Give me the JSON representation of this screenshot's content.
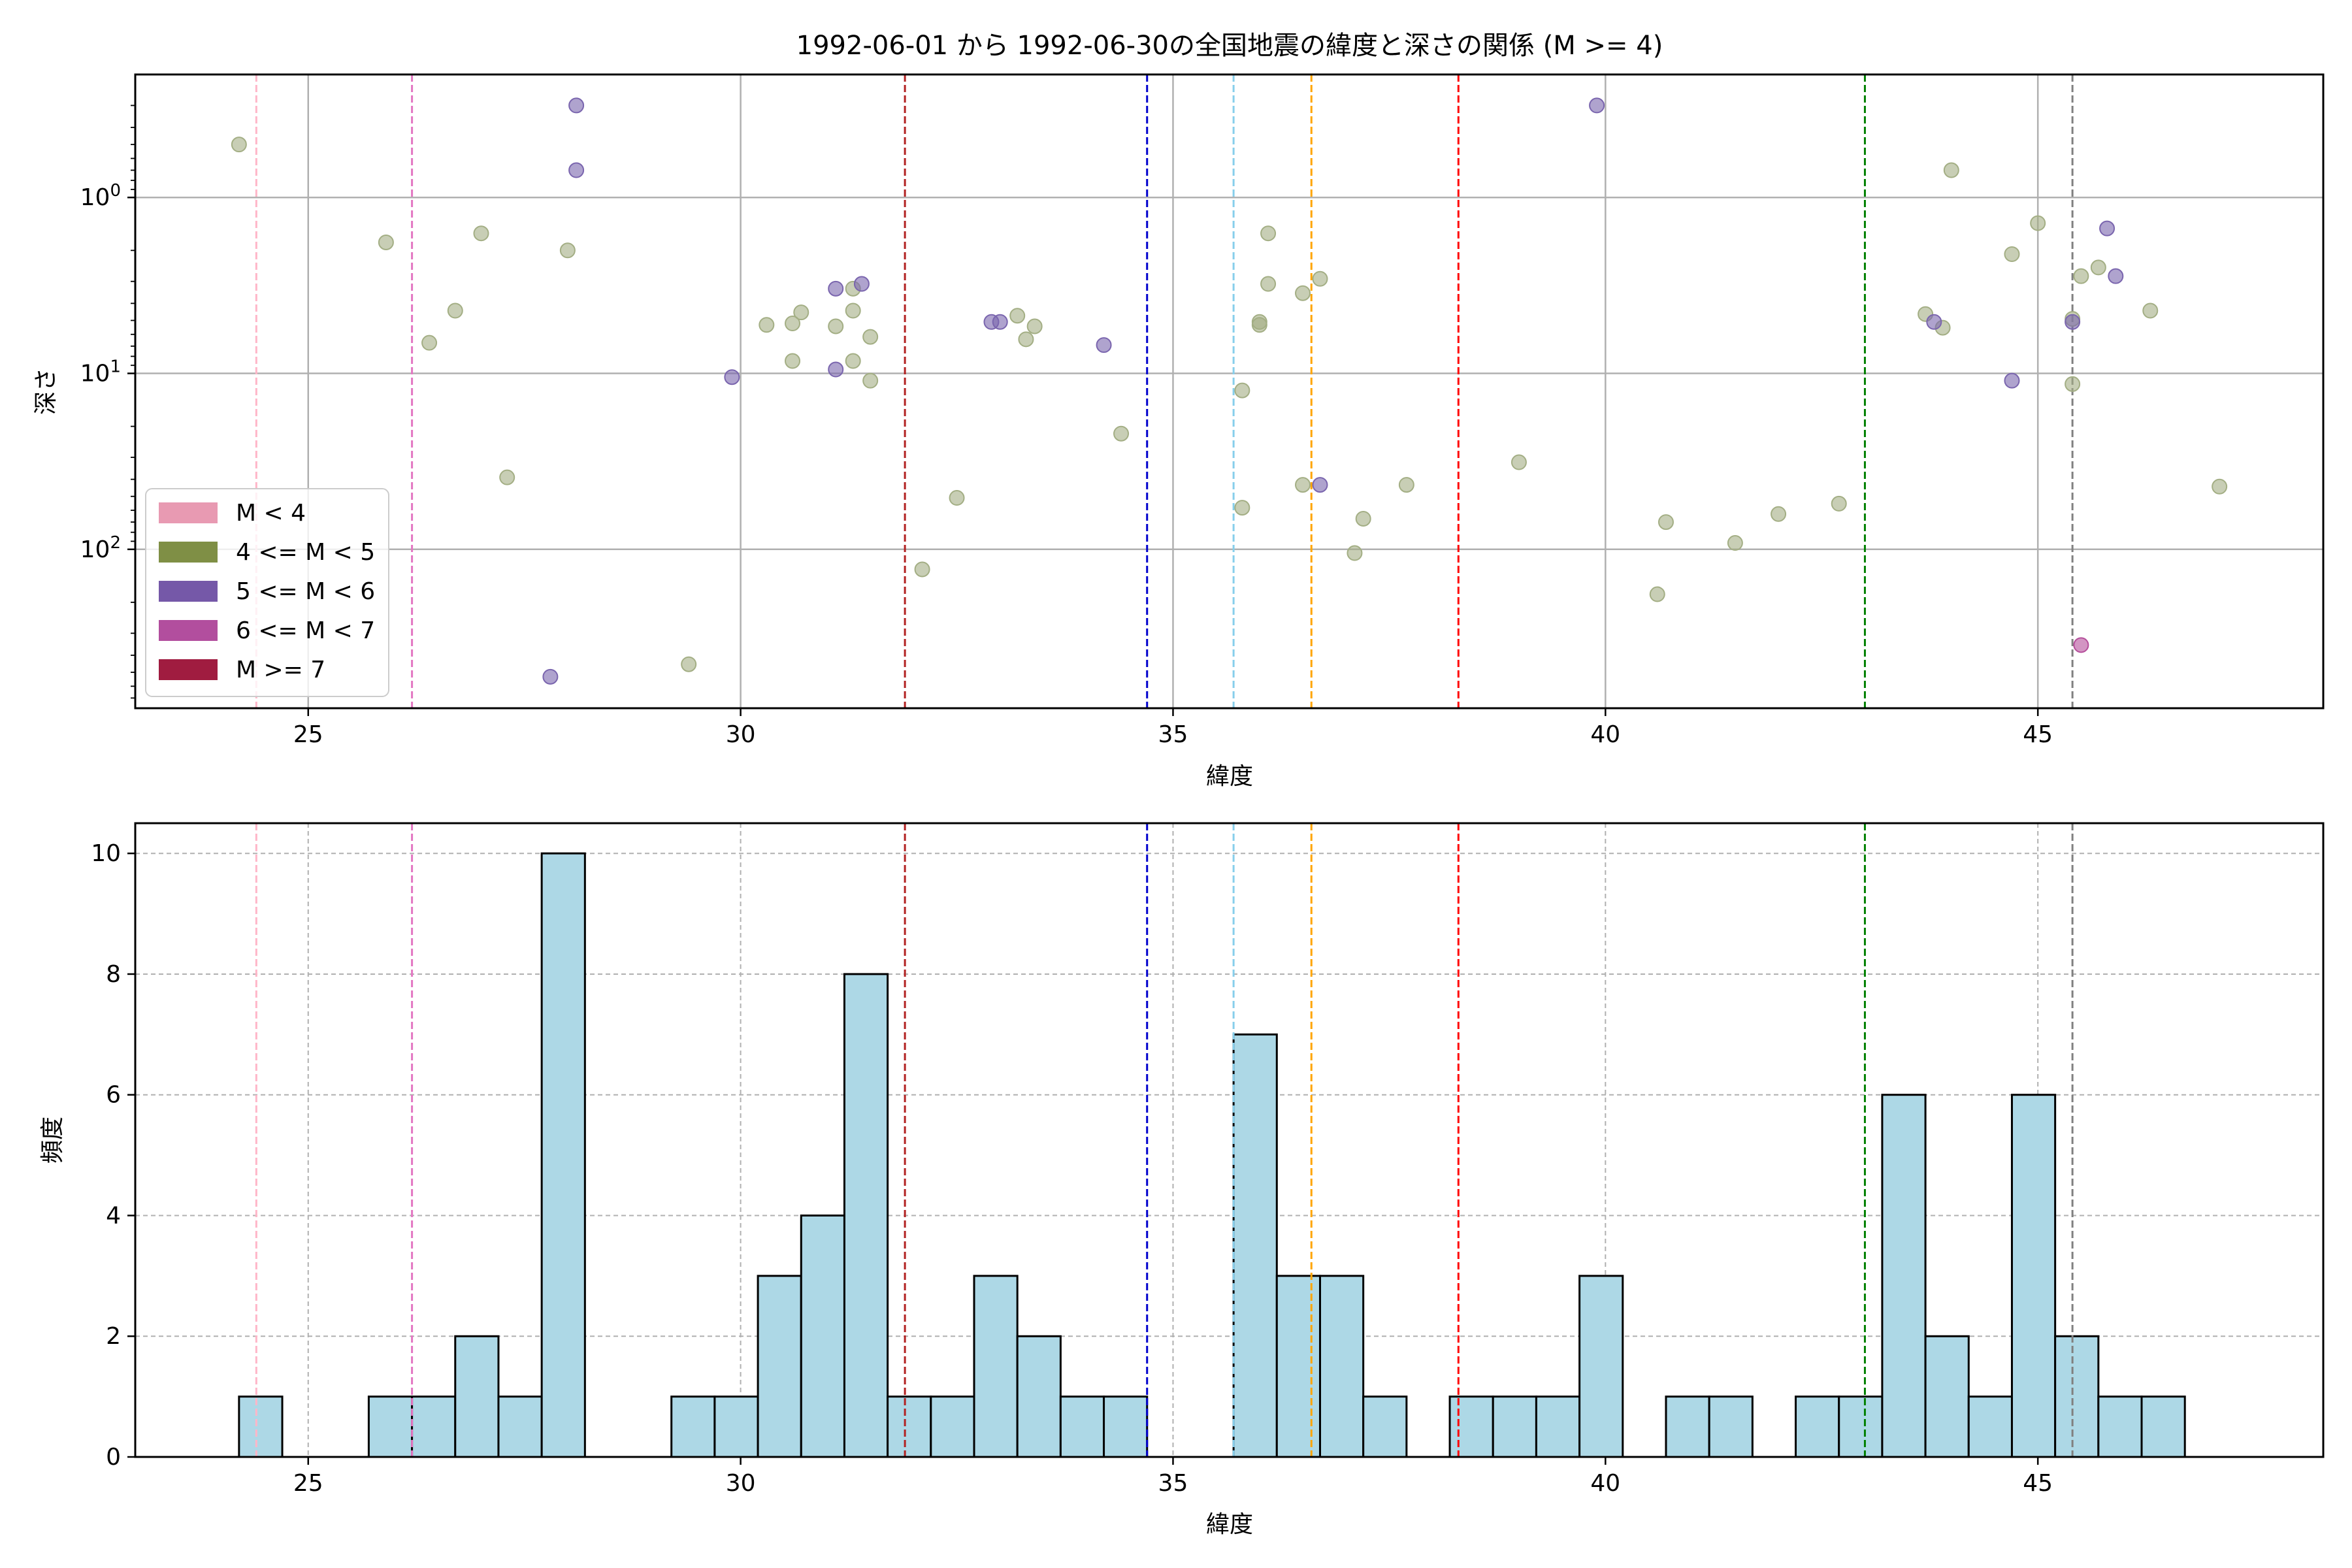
{
  "chart_data": [
    {
      "type": "scatter",
      "title": "1992-06-01 から 1992-06-30の全国地震の緯度と深さの関係 (M >= 4)",
      "xlabel": "緯度",
      "ylabel": "深さ",
      "xlim": [
        23.0,
        48.3
      ],
      "ylim": [
        800,
        0.2
      ],
      "yscale": "log",
      "yaxis_inverted": true,
      "xticks": [
        25,
        30,
        35,
        40,
        45
      ],
      "yticks": [
        {
          "value": 1,
          "label": "10^0"
        },
        {
          "value": 10,
          "label": "10^1"
        },
        {
          "value": 100,
          "label": "10^2"
        }
      ],
      "grid": true,
      "legend_position": "lower-left",
      "legend": [
        {
          "label": "M < 4",
          "color": "#e89ab2"
        },
        {
          "label": "4 <= M < 5",
          "color": "#7f8f45"
        },
        {
          "label": "5 <= M < 6",
          "color": "#7558a8"
        },
        {
          "label": "6 <= M < 7",
          "color": "#b24e9e"
        },
        {
          "label": "M >= 7",
          "color": "#a01c40"
        }
      ],
      "vlines": [
        {
          "x": 24.4,
          "color": "#ffb6c8"
        },
        {
          "x": 26.2,
          "color": "#e377c2"
        },
        {
          "x": 31.9,
          "color": "#b22222"
        },
        {
          "x": 34.7,
          "color": "#0000cd"
        },
        {
          "x": 35.7,
          "color": "#87ceeb"
        },
        {
          "x": 36.6,
          "color": "#ffa500"
        },
        {
          "x": 38.3,
          "color": "#ff0000"
        },
        {
          "x": 43.0,
          "color": "#008000"
        },
        {
          "x": 45.4,
          "color": "#808080"
        }
      ],
      "series": [
        {
          "color": "#a3ae84",
          "points": [
            [
              24.2,
              0.5
            ],
            [
              25.9,
              1.8
            ],
            [
              26.4,
              6.7
            ],
            [
              26.7,
              4.4
            ],
            [
              27.0,
              1.6
            ],
            [
              27.3,
              39
            ],
            [
              28.0,
              2.0
            ],
            [
              29.4,
              450
            ],
            [
              30.3,
              5.3
            ],
            [
              30.6,
              5.2
            ],
            [
              30.6,
              8.5
            ],
            [
              30.7,
              4.5
            ],
            [
              31.1,
              5.4
            ],
            [
              31.3,
              3.3
            ],
            [
              31.3,
              8.5
            ],
            [
              31.3,
              4.4
            ],
            [
              31.5,
              6.2
            ],
            [
              31.5,
              11
            ],
            [
              32.1,
              130
            ],
            [
              32.5,
              51
            ],
            [
              33.2,
              4.7
            ],
            [
              33.3,
              6.4
            ],
            [
              33.4,
              5.4
            ],
            [
              34.4,
              22
            ],
            [
              35.8,
              12.5
            ],
            [
              35.8,
              58
            ],
            [
              36.0,
              5.1
            ],
            [
              36.0,
              5.3
            ],
            [
              36.1,
              1.6
            ],
            [
              36.1,
              3.1
            ],
            [
              36.5,
              3.5
            ],
            [
              36.5,
              43
            ],
            [
              36.7,
              2.9
            ],
            [
              37.1,
              105
            ],
            [
              37.2,
              67
            ],
            [
              37.7,
              43
            ],
            [
              39.0,
              32
            ],
            [
              40.6,
              180
            ],
            [
              40.7,
              70
            ],
            [
              41.5,
              92
            ],
            [
              42.0,
              63
            ],
            [
              42.7,
              55
            ],
            [
              43.7,
              4.6
            ],
            [
              43.9,
              5.5
            ],
            [
              44.0,
              0.7
            ],
            [
              44.7,
              2.1
            ],
            [
              45.0,
              1.4
            ],
            [
              45.4,
              4.9
            ],
            [
              45.4,
              11.5
            ],
            [
              45.5,
              2.8
            ],
            [
              45.7,
              2.5
            ],
            [
              46.3,
              4.4
            ],
            [
              47.1,
              44
            ]
          ]
        },
        {
          "color": "#7a65ae",
          "points": [
            [
              27.8,
              530
            ],
            [
              28.1,
              0.3
            ],
            [
              28.1,
              0.7
            ],
            [
              29.9,
              10.5
            ],
            [
              31.1,
              3.3
            ],
            [
              31.1,
              9.5
            ],
            [
              31.4,
              3.1
            ],
            [
              32.9,
              5.1
            ],
            [
              33.0,
              5.1
            ],
            [
              34.2,
              6.9
            ],
            [
              36.7,
              43
            ],
            [
              39.9,
              0.3
            ],
            [
              43.8,
              5.1
            ],
            [
              44.7,
              11
            ],
            [
              45.4,
              5.1
            ],
            [
              45.8,
              1.5
            ],
            [
              45.9,
              2.8
            ]
          ]
        },
        {
          "color": "#b54e9b",
          "points": [
            [
              45.5,
              350
            ]
          ]
        }
      ]
    },
    {
      "type": "bar",
      "xlabel": "緯度",
      "ylabel": "頻度",
      "xlim": [
        23.0,
        48.3
      ],
      "ylim": [
        0,
        10.5
      ],
      "xticks": [
        25,
        30,
        35,
        40,
        45
      ],
      "yticks": [
        0,
        2,
        4,
        6,
        8,
        10
      ],
      "grid": true,
      "bar_color": "#add8e6",
      "bin_start": 24.2,
      "bin_width": 0.5,
      "values": [
        1,
        0,
        0,
        1,
        1,
        2,
        1,
        10,
        0,
        0,
        1,
        1,
        3,
        4,
        8,
        1,
        1,
        3,
        2,
        1,
        1,
        0,
        0,
        7,
        3,
        3,
        1,
        0,
        1,
        1,
        1,
        3,
        0,
        1,
        1,
        0,
        1,
        1,
        6,
        2,
        1,
        6,
        2,
        1,
        1
      ],
      "vlines": [
        {
          "x": 24.4,
          "color": "#ffb6c8"
        },
        {
          "x": 26.2,
          "color": "#e377c2"
        },
        {
          "x": 31.9,
          "color": "#b22222"
        },
        {
          "x": 34.7,
          "color": "#0000cd"
        },
        {
          "x": 35.7,
          "color": "#87ceeb"
        },
        {
          "x": 36.6,
          "color": "#ffa500"
        },
        {
          "x": 38.3,
          "color": "#ff0000"
        },
        {
          "x": 43.0,
          "color": "#008000"
        },
        {
          "x": 45.4,
          "color": "#808080"
        }
      ]
    }
  ]
}
